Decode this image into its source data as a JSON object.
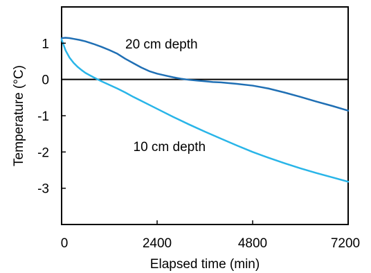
{
  "chart_data": {
    "type": "line",
    "title": "",
    "xlabel": "Elapsed time (min)",
    "ylabel": "Temperature (°C)",
    "xlim": [
      0,
      7200
    ],
    "ylim": [
      -4,
      2
    ],
    "xticks": [
      0,
      2400,
      4800,
      7200
    ],
    "yticks": [
      1,
      0,
      -1,
      -2,
      -3
    ],
    "xtick_labels": [
      "0",
      "2400",
      "4800",
      "7200"
    ],
    "ytick_labels": [
      "1",
      "0",
      "-1",
      "-2",
      "-3"
    ],
    "reference_line": 0,
    "grid": false,
    "legend": "none",
    "series": [
      {
        "name": "20 cm depth",
        "color": "#1f6fb4",
        "x": [
          0,
          100,
          200,
          300,
          450,
          600,
          800,
          1000,
          1200,
          1400,
          1600,
          1800,
          2000,
          2200,
          2400,
          2600,
          2800,
          3000,
          3200,
          3400,
          3600,
          3800,
          4000,
          4400,
          4800,
          5200,
          5600,
          6000,
          6400,
          6800,
          7200
        ],
        "y": [
          1.14,
          1.15,
          1.14,
          1.12,
          1.09,
          1.05,
          0.98,
          0.9,
          0.81,
          0.71,
          0.57,
          0.45,
          0.33,
          0.23,
          0.16,
          0.11,
          0.06,
          0.02,
          -0.01,
          -0.03,
          -0.05,
          -0.07,
          -0.08,
          -0.12,
          -0.17,
          -0.25,
          -0.36,
          -0.48,
          -0.61,
          -0.73,
          -0.86
        ]
      },
      {
        "name": "10 cm depth",
        "color": "#29b5e8",
        "x": [
          0,
          50,
          100,
          200,
          300,
          400,
          500,
          600,
          800,
          1000,
          1200,
          1400,
          1600,
          1800,
          2000,
          2400,
          2800,
          3200,
          3600,
          4000,
          4400,
          4800,
          5200,
          5600,
          6000,
          6400,
          6800,
          7200
        ],
        "y": [
          1.1,
          0.95,
          0.8,
          0.6,
          0.46,
          0.35,
          0.26,
          0.18,
          0.06,
          -0.05,
          -0.15,
          -0.25,
          -0.36,
          -0.48,
          -0.59,
          -0.81,
          -1.03,
          -1.24,
          -1.44,
          -1.63,
          -1.82,
          -2.0,
          -2.16,
          -2.31,
          -2.45,
          -2.58,
          -2.7,
          -2.82
        ]
      }
    ],
    "annotations": [
      {
        "text": "20 cm depth",
        "x": 1600,
        "y": 0.85
      },
      {
        "text": "10 cm depth",
        "x": 1800,
        "y": -1.97
      }
    ]
  }
}
